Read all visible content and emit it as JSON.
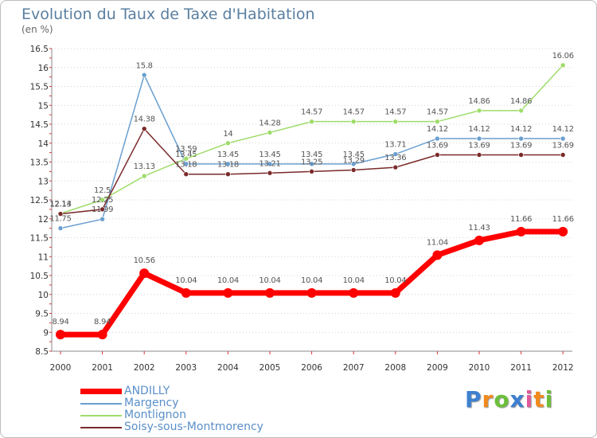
{
  "chart_data": {
    "type": "line",
    "title": "Evolution du Taux de Taxe d'Habitation",
    "subtitle": "(en %)",
    "x": [
      "2000",
      "2001",
      "2002",
      "2003",
      "2004",
      "2005",
      "2006",
      "2007",
      "2008",
      "2009",
      "2010",
      "2011",
      "2012"
    ],
    "ylim": [
      8.5,
      16.5
    ],
    "yticks": [
      "8.5",
      "9",
      "9.5",
      "10",
      "10.5",
      "11",
      "11.5",
      "12",
      "12.5",
      "13",
      "13.5",
      "14",
      "14.5",
      "15",
      "15.5",
      "16",
      "16.5"
    ],
    "grid": "horizontal dotted",
    "legend_position": "bottom-left",
    "series": [
      {
        "name": "ANDILLY",
        "color": "#ff0000",
        "values": [
          8.94,
          8.94,
          10.56,
          10.04,
          10.04,
          10.04,
          10.04,
          10.04,
          10.04,
          11.04,
          11.43,
          11.66,
          11.66
        ],
        "labels": [
          "8.94",
          "8.94",
          "10.56",
          "10.04",
          "10.04",
          "10.04",
          "10.04",
          "10.04",
          "10.04",
          "11.04",
          "11.43",
          "11.66",
          "11.66"
        ]
      },
      {
        "name": "Margency",
        "color": "#6a9fcf",
        "values": [
          11.75,
          11.99,
          15.8,
          13.45,
          13.45,
          13.45,
          13.45,
          13.45,
          13.71,
          14.12,
          14.12,
          14.12,
          14.12
        ],
        "labels": [
          "11.75",
          "11.99",
          "15.8",
          "13.45",
          "13.45",
          "13.45",
          "13.45",
          "13.45",
          "13.71",
          "14.12",
          "14.12",
          "14.12",
          "14.12"
        ]
      },
      {
        "name": "Montlignon",
        "color": "#9fdc6a",
        "values": [
          12.14,
          12.5,
          13.13,
          13.59,
          14.0,
          14.28,
          14.57,
          14.57,
          14.57,
          14.57,
          14.86,
          14.86,
          16.06
        ],
        "labels": [
          "12.14",
          "12.5",
          "13.13",
          "13.59",
          "14",
          "14.28",
          "14.57",
          "14.57",
          "14.57",
          "14.57",
          "14.86",
          "14.86",
          "16.06"
        ]
      },
      {
        "name": "Soisy-sous-Montmorency",
        "color": "#7a2a2a",
        "values": [
          12.13,
          12.25,
          14.38,
          13.18,
          13.18,
          13.21,
          13.25,
          13.29,
          13.36,
          13.69,
          13.69,
          13.69,
          13.69
        ],
        "labels": [
          "12.13",
          "12.25",
          "14.38",
          "13.18",
          "13.18",
          "13.21",
          "13.25",
          "13.29",
          "13.36",
          "13.69",
          "13.69",
          "13.69",
          "13.69"
        ]
      }
    ]
  },
  "brand": {
    "letters": [
      "P",
      "r",
      "o",
      "x",
      "i",
      "t",
      "i"
    ],
    "colors": [
      "#3d7fd0",
      "#f08a1c",
      "#6bbf3a",
      "#3d7fd0",
      "#e05a9a",
      "#f08a1c",
      "#6bbf3a"
    ]
  }
}
